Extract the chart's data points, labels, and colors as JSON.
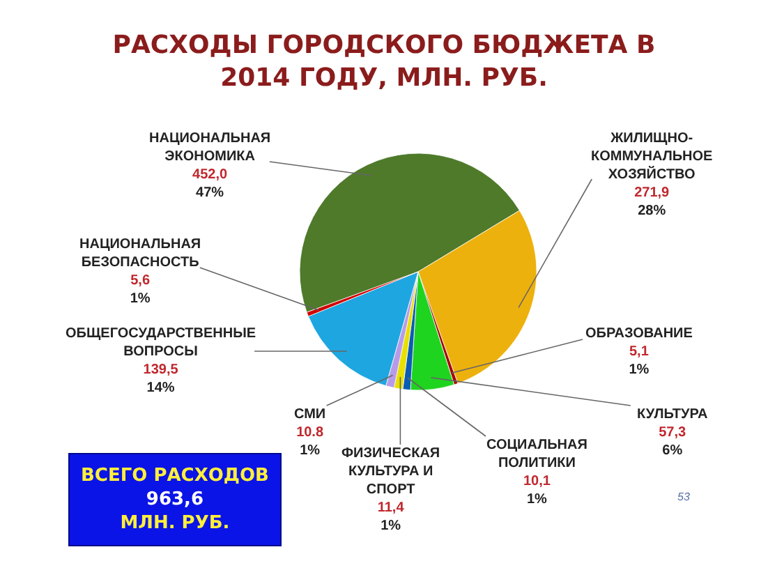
{
  "chart_data": {
    "type": "pie",
    "title": "РАСХОДЫ ГОРОДСКОГО БЮДЖЕТА В 2014 ГОДУ, МЛН. РУБ.",
    "categories": [
      "НАЦИОНАЛЬНАЯ ЭКОНОМИКА",
      "ЖИЛИЩНО-КОММУНАЛЬНОЕ ХОЗЯЙСТВО",
      "ОБРАЗОВАНИЕ",
      "КУЛЬТУРА",
      "СОЦИАЛЬНАЯ ПОЛИТИКИ",
      "ФИЗИЧЕСКАЯ КУЛЬТУРА И СПОРТ",
      "СМИ",
      "ОБЩЕГОСУДАРСТВЕННЫЕ ВОПРОСЫ",
      "НАЦИОНАЛЬНАЯ БЕЗОПАСНОСТЬ"
    ],
    "values": [
      452.0,
      271.9,
      5.1,
      57.3,
      10.1,
      11.4,
      10.8,
      139.5,
      5.6
    ],
    "colors": [
      "#4e7a2a",
      "#edb10d",
      "#a80000",
      "#1fd41f",
      "#0b5cb5",
      "#e8e000",
      "#b89be8",
      "#1ea6e0",
      "#d00000"
    ],
    "value_labels": [
      "452,0\n47%",
      "271,9\n28%",
      "5,1\n1%",
      "57,3\n6%",
      "10,1\n1%",
      "11,4\n1%",
      "10.8\n1%",
      "139,5\n14%",
      "5,6\n1%"
    ],
    "annotations": [
      "ВСЕГО РАСХОДОВ\n963,6\nМЛН. РУБ.",
      "53"
    ]
  }
}
